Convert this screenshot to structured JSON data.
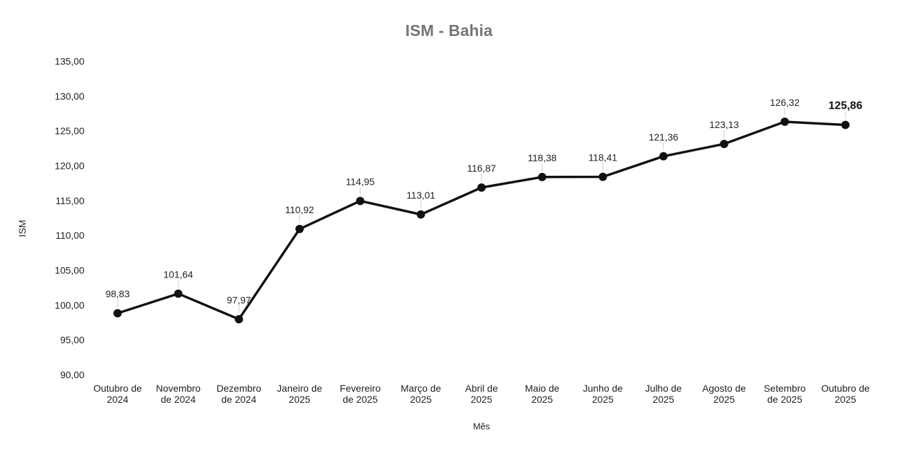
{
  "chart_data": {
    "type": "line",
    "title": "ISM - Bahia",
    "xlabel": "Mês",
    "ylabel": "ISM",
    "legend": "none",
    "grid": false,
    "ylim": [
      90,
      135
    ],
    "ytick_step": 5,
    "yticks": [
      {
        "value": 90,
        "label": "90,00"
      },
      {
        "value": 95,
        "label": "95,00"
      },
      {
        "value": 100,
        "label": "100,00"
      },
      {
        "value": 105,
        "label": "105,00"
      },
      {
        "value": 110,
        "label": "110,00"
      },
      {
        "value": 115,
        "label": "115,00"
      },
      {
        "value": 120,
        "label": "120,00"
      },
      {
        "value": 125,
        "label": "125,00"
      },
      {
        "value": 130,
        "label": "130,00"
      },
      {
        "value": 135,
        "label": "135,00"
      }
    ],
    "categories": [
      "Outubro de 2024",
      "Novembro de 2024",
      "Dezembro de 2024",
      "Janeiro de 2025",
      "Fevereiro de 2025",
      "Março de 2025",
      "Abril de 2025",
      "Maio de 2025",
      "Junho de 2025",
      "Julho de 2025",
      "Agosto de 2025",
      "Setembro de 2025",
      "Outubro de 2025"
    ],
    "category_lines": [
      [
        "Outubro de",
        "2024"
      ],
      [
        "Novembro",
        "de 2024"
      ],
      [
        "Dezembro",
        "de 2024"
      ],
      [
        "Janeiro de",
        "2025"
      ],
      [
        "Fevereiro",
        "de 2025"
      ],
      [
        "Março de",
        "2025"
      ],
      [
        "Abril de",
        "2025"
      ],
      [
        "Maio de",
        "2025"
      ],
      [
        "Junho de",
        "2025"
      ],
      [
        "Julho de",
        "2025"
      ],
      [
        "Agosto de",
        "2025"
      ],
      [
        "Setembro",
        "de 2025"
      ],
      [
        "Outubro de",
        "2025"
      ]
    ],
    "series": [
      {
        "name": "ISM",
        "values": [
          98.83,
          101.64,
          97.97,
          110.92,
          114.95,
          113.01,
          116.87,
          118.38,
          118.41,
          121.36,
          123.13,
          126.32,
          125.86
        ]
      }
    ],
    "point_labels": [
      "98,83",
      "101,64",
      "97,97",
      "110,92",
      "114,95",
      "113,01",
      "116,87",
      "118,38",
      "118,41",
      "121,36",
      "123,13",
      "126,32",
      "125,86"
    ],
    "last_point_label_bold": true,
    "colors": {
      "line": "#111111",
      "point": "#111111",
      "point_label": "#212121",
      "axis_text": "#212121",
      "title": "#757575",
      "leader_line": "#dcdcdc",
      "background": "#ffffff"
    }
  }
}
